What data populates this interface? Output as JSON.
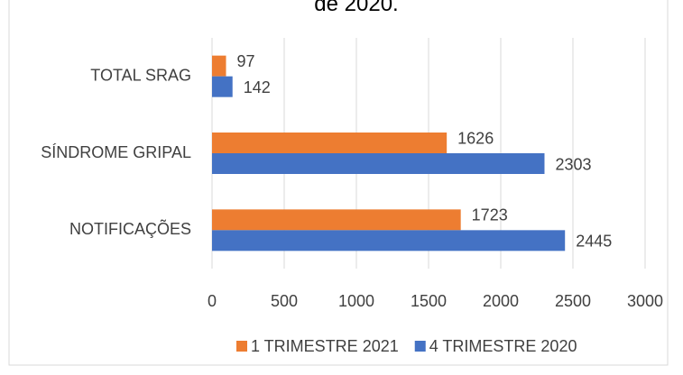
{
  "chart_data": {
    "type": "hbar",
    "title": "de 2020.",
    "categories": [
      "TOTAL SRAG",
      "SÍNDROME GRIPAL",
      "NOTIFICAÇÕES"
    ],
    "series": [
      {
        "name": "1 TRIMESTRE 2021",
        "color": "#ed7d31",
        "values": [
          97,
          1626,
          1723
        ]
      },
      {
        "name": "4 TRIMESTRE 2020",
        "color": "#4472c4",
        "values": [
          142,
          2303,
          2445
        ]
      }
    ],
    "xlim": [
      0,
      3000
    ],
    "xticks": [
      0,
      500,
      1000,
      1500,
      2000,
      2500,
      3000
    ],
    "grid": true,
    "legend": "bottom"
  }
}
